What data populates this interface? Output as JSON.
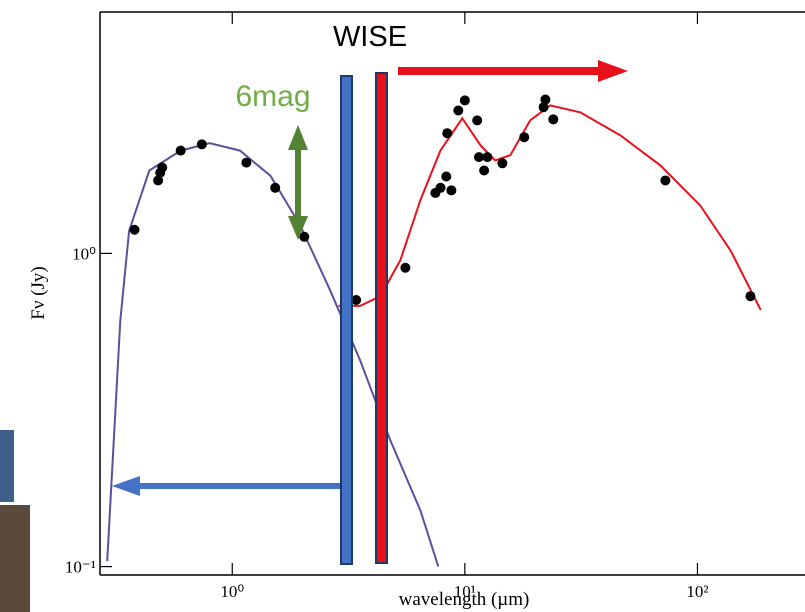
{
  "chart_data": {
    "type": "scatter",
    "xscale": "log",
    "yscale": "log",
    "xlim": [
      0.27,
      290
    ],
    "ylim": [
      0.094,
      5.9
    ],
    "xticks": [
      {
        "value": 1,
        "label": "10⁰"
      },
      {
        "value": 10,
        "label": "10¹"
      },
      {
        "value": 100,
        "label": "10²"
      }
    ],
    "yticks": [
      {
        "value": 0.1,
        "label": "10⁻¹"
      },
      {
        "value": 1,
        "label": "10⁰"
      }
    ],
    "x_label": "wavelength (µm)",
    "y_label": "Fν (Jy)",
    "annotations": [
      "WISE",
      "6mag"
    ],
    "series": [
      {
        "style": "line",
        "color": "#5b4f9e",
        "x": [
          0.29,
          0.33,
          0.36,
          0.44,
          0.6,
          0.8,
          1.08,
          1.46,
          1.96,
          2.64,
          3.55,
          4.78,
          6.44,
          7.69
        ],
        "values": [
          0.104,
          0.61,
          1.18,
          1.84,
          2.13,
          2.25,
          2.13,
          1.77,
          1.23,
          0.76,
          0.455,
          0.253,
          0.151,
          0.1
        ]
      },
      {
        "style": "line",
        "color": "#e8101a",
        "x": [
          2.86,
          3.55,
          4.33,
          5.28,
          6.44,
          7.85,
          9.75,
          11.7,
          13.5,
          15.7,
          19.1,
          23.3,
          31.4,
          46.7,
          69.3,
          103,
          139,
          187
        ],
        "values": [
          0.68,
          0.68,
          0.73,
          0.95,
          1.48,
          2.13,
          2.7,
          2.21,
          1.98,
          2.06,
          2.66,
          2.97,
          2.82,
          2.38,
          1.91,
          1.42,
          1.02,
          0.66
        ]
      },
      {
        "style": "markers",
        "color": "#000000",
        "x": [
          0.38,
          0.48,
          0.49,
          0.5,
          0.6,
          0.74,
          1.15,
          1.53,
          2.04,
          3.41,
          5.55,
          7.47,
          7.86,
          8.32,
          8.75,
          8.4,
          9.37,
          10.0,
          11.3,
          11.5,
          12.1,
          12.5,
          14.5,
          18.0,
          21.8,
          22.2,
          24.0,
          72.8,
          169
        ],
        "values": [
          1.19,
          1.71,
          1.81,
          1.88,
          2.13,
          2.23,
          1.95,
          1.62,
          1.13,
          0.71,
          0.9,
          1.56,
          1.62,
          1.76,
          1.59,
          2.42,
          2.86,
          3.08,
          2.66,
          2.03,
          1.84,
          2.03,
          1.94,
          2.35,
          2.93,
          3.1,
          2.68,
          1.71,
          0.73
        ]
      }
    ]
  }
}
